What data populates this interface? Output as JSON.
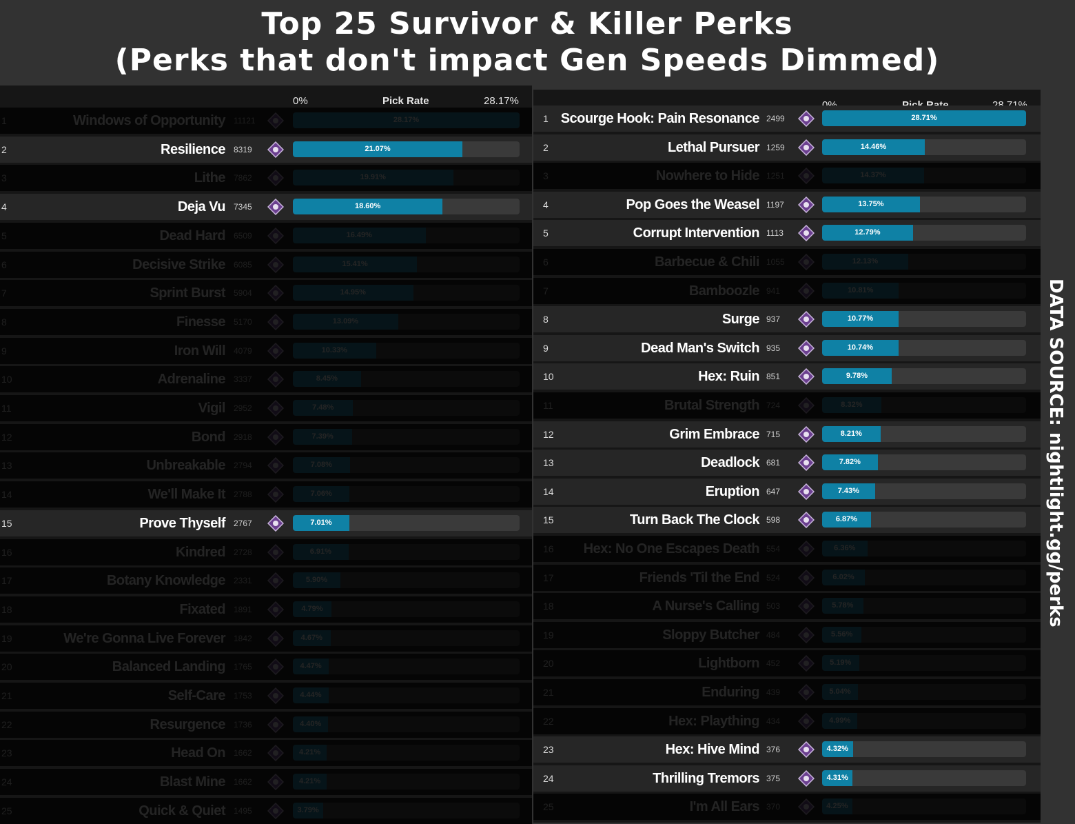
{
  "title_line1": "Top 25 Survivor & Killer Perks",
  "title_line2": "(Perks that don't impact Gen Speeds Dimmed)",
  "data_source": "DATA SOURCE: nightlight.gg/perks",
  "colors": {
    "bar_fill": "#0f81a5",
    "bar_track": "#3a3a3a",
    "icon_purple": "#6b3f8f"
  },
  "chart_data": [
    {
      "type": "bar",
      "title": "",
      "xlabel": "Pick Rate",
      "axis_min_label": "0%",
      "axis_max_label": "28.17%",
      "xlim": [
        0,
        28.17
      ],
      "rows": [
        {
          "rank": "1",
          "name": "Windows of Opportunity",
          "count": "11121",
          "value": 28.17,
          "label": "28.17%",
          "dimmed": true
        },
        {
          "rank": "2",
          "name": "Resilience",
          "count": "8319",
          "value": 21.07,
          "label": "21.07%",
          "dimmed": false
        },
        {
          "rank": "3",
          "name": "Lithe",
          "count": "7862",
          "value": 19.91,
          "label": "19.91%",
          "dimmed": true
        },
        {
          "rank": "4",
          "name": "Deja Vu",
          "count": "7345",
          "value": 18.6,
          "label": "18.60%",
          "dimmed": false
        },
        {
          "rank": "5",
          "name": "Dead Hard",
          "count": "6509",
          "value": 16.49,
          "label": "16.49%",
          "dimmed": true
        },
        {
          "rank": "6",
          "name": "Decisive Strike",
          "count": "6085",
          "value": 15.41,
          "label": "15.41%",
          "dimmed": true
        },
        {
          "rank": "7",
          "name": "Sprint Burst",
          "count": "5904",
          "value": 14.95,
          "label": "14.95%",
          "dimmed": true
        },
        {
          "rank": "8",
          "name": "Finesse",
          "count": "5170",
          "value": 13.09,
          "label": "13.09%",
          "dimmed": true
        },
        {
          "rank": "9",
          "name": "Iron Will",
          "count": "4079",
          "value": 10.33,
          "label": "10.33%",
          "dimmed": true
        },
        {
          "rank": "10",
          "name": "Adrenaline",
          "count": "3337",
          "value": 8.45,
          "label": "8.45%",
          "dimmed": true
        },
        {
          "rank": "11",
          "name": "Vigil",
          "count": "2952",
          "value": 7.48,
          "label": "7.48%",
          "dimmed": true
        },
        {
          "rank": "12",
          "name": "Bond",
          "count": "2918",
          "value": 7.39,
          "label": "7.39%",
          "dimmed": true
        },
        {
          "rank": "13",
          "name": "Unbreakable",
          "count": "2794",
          "value": 7.08,
          "label": "7.08%",
          "dimmed": true
        },
        {
          "rank": "14",
          "name": "We'll Make It",
          "count": "2788",
          "value": 7.06,
          "label": "7.06%",
          "dimmed": true
        },
        {
          "rank": "15",
          "name": "Prove Thyself",
          "count": "2767",
          "value": 7.01,
          "label": "7.01%",
          "dimmed": false
        },
        {
          "rank": "16",
          "name": "Kindred",
          "count": "2728",
          "value": 6.91,
          "label": "6.91%",
          "dimmed": true
        },
        {
          "rank": "17",
          "name": "Botany Knowledge",
          "count": "2331",
          "value": 5.9,
          "label": "5.90%",
          "dimmed": true
        },
        {
          "rank": "18",
          "name": "Fixated",
          "count": "1891",
          "value": 4.79,
          "label": "4.79%",
          "dimmed": true
        },
        {
          "rank": "19",
          "name": "We're Gonna Live Forever",
          "count": "1842",
          "value": 4.67,
          "label": "4.67%",
          "dimmed": true
        },
        {
          "rank": "20",
          "name": "Balanced Landing",
          "count": "1765",
          "value": 4.47,
          "label": "4.47%",
          "dimmed": true
        },
        {
          "rank": "21",
          "name": "Self-Care",
          "count": "1753",
          "value": 4.44,
          "label": "4.44%",
          "dimmed": true
        },
        {
          "rank": "22",
          "name": "Resurgence",
          "count": "1736",
          "value": 4.4,
          "label": "4.40%",
          "dimmed": true
        },
        {
          "rank": "23",
          "name": "Head On",
          "count": "1662",
          "value": 4.21,
          "label": "4.21%",
          "dimmed": true
        },
        {
          "rank": "24",
          "name": "Blast Mine",
          "count": "1662",
          "value": 4.21,
          "label": "4.21%",
          "dimmed": true
        },
        {
          "rank": "25",
          "name": "Quick & Quiet",
          "count": "1495",
          "value": 3.79,
          "label": "3.79%",
          "dimmed": true
        }
      ]
    },
    {
      "type": "bar",
      "title": "",
      "xlabel": "Pick Rate",
      "axis_min_label": "0%",
      "axis_max_label": "28.71%",
      "xlim": [
        0,
        28.71
      ],
      "rows": [
        {
          "rank": "1",
          "name": "Scourge Hook: Pain Resonance",
          "count": "2499",
          "value": 28.71,
          "label": "28.71%",
          "dimmed": false
        },
        {
          "rank": "2",
          "name": "Lethal Pursuer",
          "count": "1259",
          "value": 14.46,
          "label": "14.46%",
          "dimmed": false
        },
        {
          "rank": "3",
          "name": "Nowhere to Hide",
          "count": "1251",
          "value": 14.37,
          "label": "14.37%",
          "dimmed": true
        },
        {
          "rank": "4",
          "name": "Pop Goes the Weasel",
          "count": "1197",
          "value": 13.75,
          "label": "13.75%",
          "dimmed": false
        },
        {
          "rank": "5",
          "name": "Corrupt Intervention",
          "count": "1113",
          "value": 12.79,
          "label": "12.79%",
          "dimmed": false
        },
        {
          "rank": "6",
          "name": "Barbecue & Chili",
          "count": "1055",
          "value": 12.13,
          "label": "12.13%",
          "dimmed": true
        },
        {
          "rank": "7",
          "name": "Bamboozle",
          "count": "941",
          "value": 10.81,
          "label": "10.81%",
          "dimmed": true
        },
        {
          "rank": "8",
          "name": "Surge",
          "count": "937",
          "value": 10.77,
          "label": "10.77%",
          "dimmed": false
        },
        {
          "rank": "9",
          "name": "Dead Man's Switch",
          "count": "935",
          "value": 10.74,
          "label": "10.74%",
          "dimmed": false
        },
        {
          "rank": "10",
          "name": "Hex: Ruin",
          "count": "851",
          "value": 9.78,
          "label": "9.78%",
          "dimmed": false
        },
        {
          "rank": "11",
          "name": "Brutal Strength",
          "count": "724",
          "value": 8.32,
          "label": "8.32%",
          "dimmed": true
        },
        {
          "rank": "12",
          "name": "Grim Embrace",
          "count": "715",
          "value": 8.21,
          "label": "8.21%",
          "dimmed": false
        },
        {
          "rank": "13",
          "name": "Deadlock",
          "count": "681",
          "value": 7.82,
          "label": "7.82%",
          "dimmed": false
        },
        {
          "rank": "14",
          "name": "Eruption",
          "count": "647",
          "value": 7.43,
          "label": "7.43%",
          "dimmed": false
        },
        {
          "rank": "15",
          "name": "Turn Back The Clock",
          "count": "598",
          "value": 6.87,
          "label": "6.87%",
          "dimmed": false
        },
        {
          "rank": "16",
          "name": "Hex: No One Escapes Death",
          "count": "554",
          "value": 6.36,
          "label": "6.36%",
          "dimmed": true
        },
        {
          "rank": "17",
          "name": "Friends 'Til the End",
          "count": "524",
          "value": 6.02,
          "label": "6.02%",
          "dimmed": true
        },
        {
          "rank": "18",
          "name": "A Nurse's Calling",
          "count": "503",
          "value": 5.78,
          "label": "5.78%",
          "dimmed": true
        },
        {
          "rank": "19",
          "name": "Sloppy Butcher",
          "count": "484",
          "value": 5.56,
          "label": "5.56%",
          "dimmed": true
        },
        {
          "rank": "20",
          "name": "Lightborn",
          "count": "452",
          "value": 5.19,
          "label": "5.19%",
          "dimmed": true
        },
        {
          "rank": "21",
          "name": "Enduring",
          "count": "439",
          "value": 5.04,
          "label": "5.04%",
          "dimmed": true
        },
        {
          "rank": "22",
          "name": "Hex: Plaything",
          "count": "434",
          "value": 4.99,
          "label": "4.99%",
          "dimmed": true
        },
        {
          "rank": "23",
          "name": "Hex: Hive Mind",
          "count": "376",
          "value": 4.32,
          "label": "4.32%",
          "dimmed": false
        },
        {
          "rank": "24",
          "name": "Thrilling Tremors",
          "count": "375",
          "value": 4.31,
          "label": "4.31%",
          "dimmed": false
        },
        {
          "rank": "25",
          "name": "I'm All Ears",
          "count": "370",
          "value": 4.25,
          "label": "4.25%",
          "dimmed": true
        }
      ]
    }
  ]
}
